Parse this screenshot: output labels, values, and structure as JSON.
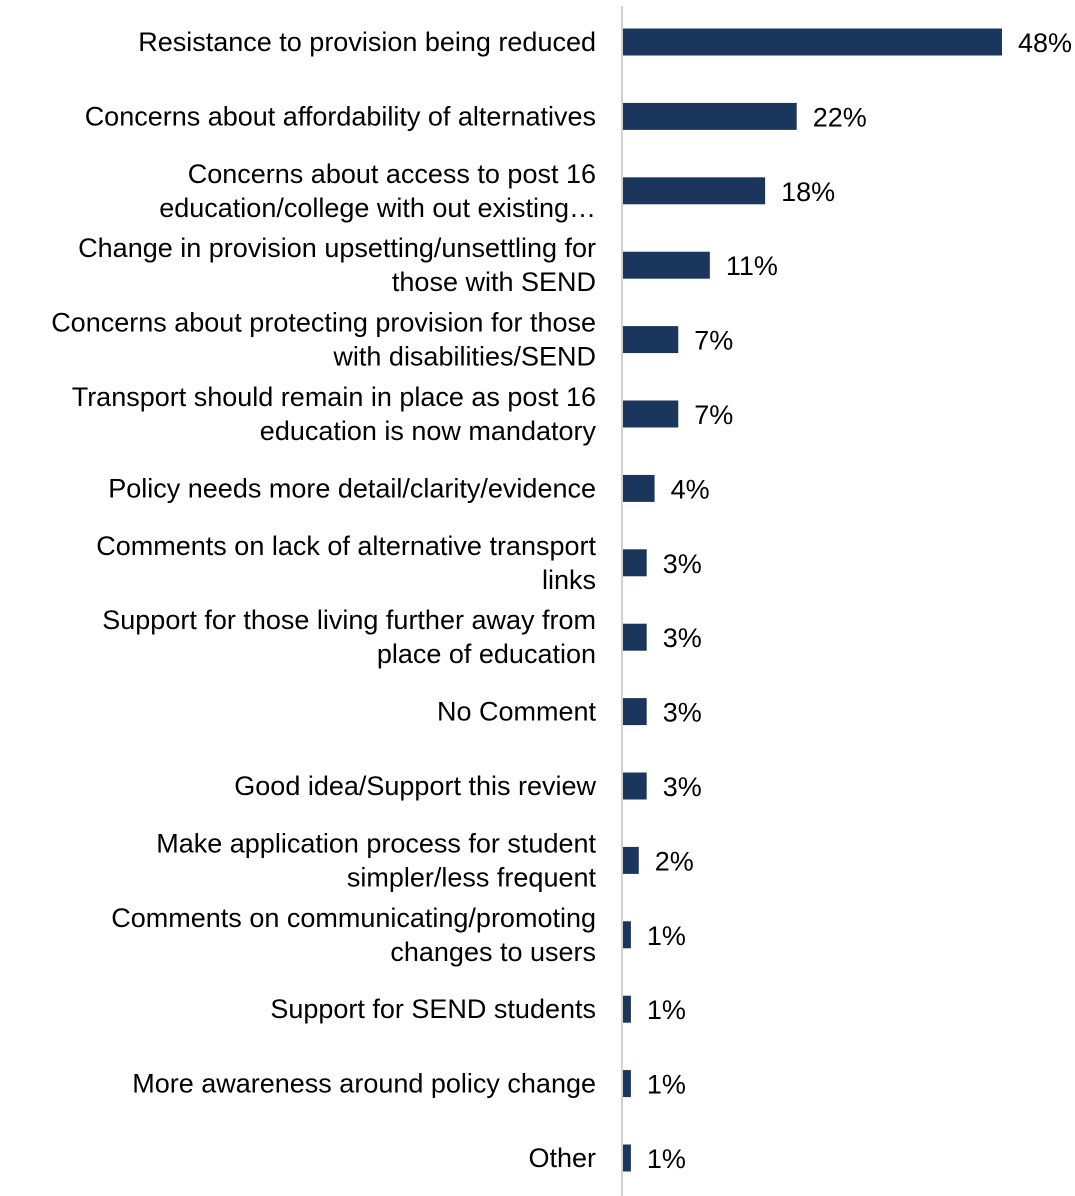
{
  "chart_data": {
    "type": "bar",
    "orientation": "horizontal",
    "categories": [
      [
        "Resistance to provision being reduced"
      ],
      [
        "Concerns about affordability of alternatives"
      ],
      [
        "Concerns about access to post 16",
        "education/college with out existing…"
      ],
      [
        "Change in provision upsetting/unsettling for",
        "those with SEND"
      ],
      [
        "Concerns about protecting provision for those",
        "with disabilities/SEND"
      ],
      [
        "Transport should remain in place as post 16",
        "education is now mandatory"
      ],
      [
        "Policy needs more detail/clarity/evidence"
      ],
      [
        "Comments on lack of alternative transport",
        "links"
      ],
      [
        "Support for those living further away from",
        "place of education"
      ],
      [
        "No Comment"
      ],
      [
        "Good idea/Support this review"
      ],
      [
        "Make application process for student",
        "simpler/less frequent"
      ],
      [
        "Comments on communicating/promoting",
        "changes to users"
      ],
      [
        "Support for SEND students"
      ],
      [
        "More awareness around policy change"
      ],
      [
        "Other"
      ]
    ],
    "values": [
      48,
      22,
      18,
      11,
      7,
      7,
      4,
      3,
      3,
      3,
      3,
      2,
      1,
      1,
      1,
      1
    ],
    "value_labels": [
      "48%",
      "22%",
      "18%",
      "11%",
      "7%",
      "7%",
      "4%",
      "3%",
      "3%",
      "3%",
      "3%",
      "2%",
      "1%",
      "1%",
      "1%",
      "1%"
    ],
    "title": "",
    "xlabel": "",
    "ylabel": "",
    "xlim": [
      0,
      48
    ],
    "grid": false,
    "legend": "none",
    "bar_color": "#1b365d",
    "axis_color": "#d0d0d0"
  }
}
